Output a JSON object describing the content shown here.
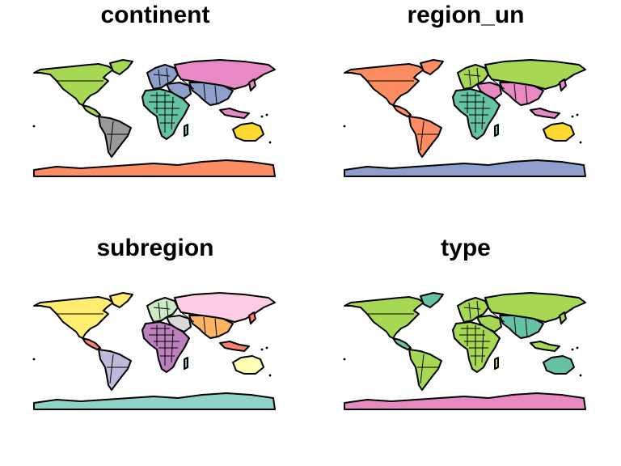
{
  "panels": [
    {
      "title": "continent",
      "colors": {
        "north_america": "#A6D854",
        "south_america": "#999999",
        "europe": "#8DA0CB",
        "asia": "#E78AC3",
        "asia_south": "#8DA0CB",
        "africa": "#66C2A5",
        "oceania": "#FFD92F",
        "antarctica": "#FC8D62",
        "greenland": "#A6D854",
        "middle_east": "#8DA0CB",
        "indonesia": "#E78AC3",
        "madagascar": "#66C2A5",
        "central_america": "#A6D854",
        "japan": "#E78AC3"
      }
    },
    {
      "title": "region_un",
      "colors": {
        "north_america": "#FC8D62",
        "south_america": "#FC8D62",
        "europe": "#A6D854",
        "asia": "#A6D854",
        "asia_south": "#E78AC3",
        "africa": "#66C2A5",
        "oceania": "#FFD92F",
        "antarctica": "#8DA0CB",
        "greenland": "#FC8D62",
        "middle_east": "#E78AC3",
        "indonesia": "#E78AC3",
        "madagascar": "#66C2A5",
        "central_america": "#FC8D62",
        "japan": "#E78AC3"
      }
    },
    {
      "title": "subregion",
      "colors": {
        "north_america": "#FFED6F",
        "south_america": "#BEBADA",
        "europe": "#CCEBC5",
        "asia": "#FCCDE5",
        "asia_south": "#FDB462",
        "africa": "#BC80BD",
        "oceania": "#FFFFB3",
        "antarctica": "#8DD3C7",
        "greenland": "#FFED6F",
        "middle_east": "#D9D9D9",
        "indonesia": "#FB8072",
        "madagascar": "#80B1D3",
        "central_america": "#FB8072",
        "japan": "#FB8072"
      }
    },
    {
      "title": "type",
      "colors": {
        "north_america": "#A6D854",
        "south_america": "#A6D854",
        "europe": "#A6D854",
        "asia": "#A6D854",
        "asia_south": "#66C2A5",
        "africa": "#A6D854",
        "oceania": "#66C2A5",
        "antarctica": "#E78AC3",
        "greenland": "#66C2A5",
        "middle_east": "#A6D854",
        "indonesia": "#A6D854",
        "madagascar": "#A6D854",
        "central_america": "#66C2A5",
        "japan": "#A6D854"
      }
    }
  ]
}
